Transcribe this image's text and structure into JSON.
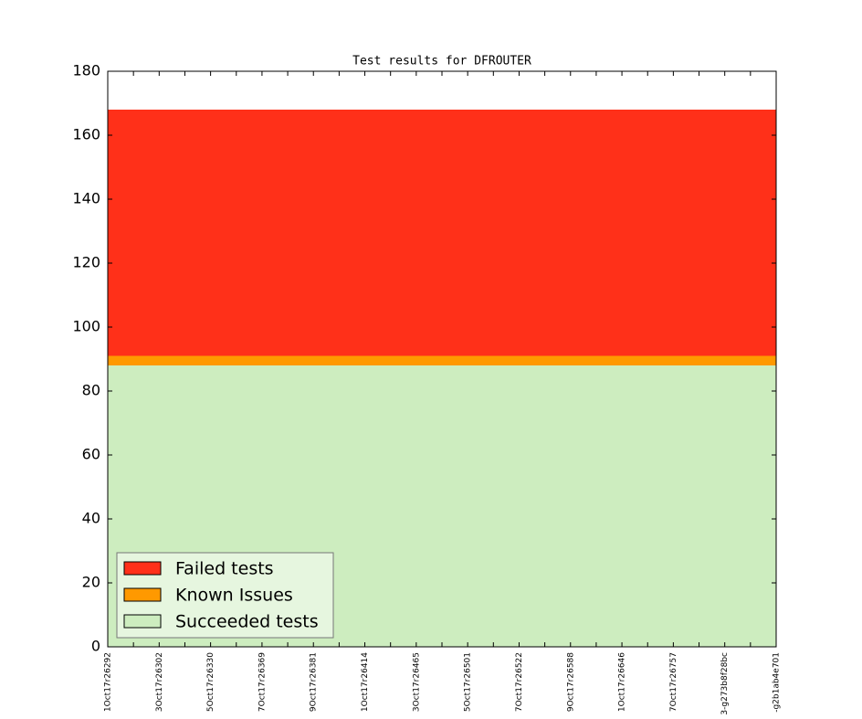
{
  "chart_data": {
    "type": "area",
    "stacked": true,
    "title": "Test results for DFROUTER",
    "categories": [
      "1Oct17r26292",
      null,
      "3Oct17r26302",
      null,
      "5Oct17r26330",
      null,
      "7Oct17r26369",
      null,
      "9Oct17r26381",
      null,
      "1Oct17r26414",
      null,
      "3Oct17r26465",
      null,
      "5Oct17r26501",
      null,
      "7Oct17r26522",
      null,
      "9Oct17r26588",
      null,
      "1Oct17r26646",
      null,
      "7Oct17r26757",
      null,
      "3-g273b8f28bc",
      null,
      "-g2b1ab4e701"
    ],
    "series": [
      {
        "name": "Succeeded tests",
        "color": "#cdedbf",
        "values": [
          88,
          88,
          88,
          88,
          88,
          88,
          88,
          88,
          88,
          88,
          88,
          88,
          88,
          88,
          88,
          88,
          88,
          88,
          88,
          88,
          88,
          88,
          88,
          88,
          88,
          88,
          88
        ]
      },
      {
        "name": "Known Issues",
        "color": "#ff9900",
        "values": [
          3,
          3,
          3,
          3,
          3,
          3,
          3,
          3,
          3,
          3,
          3,
          3,
          3,
          3,
          3,
          3,
          3,
          3,
          3,
          3,
          3,
          3,
          3,
          3,
          3,
          3,
          3
        ]
      },
      {
        "name": "Failed tests",
        "color": "#ff3019",
        "values": [
          77,
          77,
          77,
          77,
          77,
          77,
          77,
          77,
          77,
          77,
          77,
          77,
          77,
          77,
          77,
          77,
          77,
          77,
          77,
          77,
          77,
          77,
          77,
          77,
          77,
          77,
          77
        ]
      }
    ],
    "ylim": [
      0,
      180
    ],
    "yticks": [
      0,
      20,
      40,
      60,
      80,
      100,
      120,
      140,
      160,
      180
    ],
    "legend": "lower left"
  }
}
